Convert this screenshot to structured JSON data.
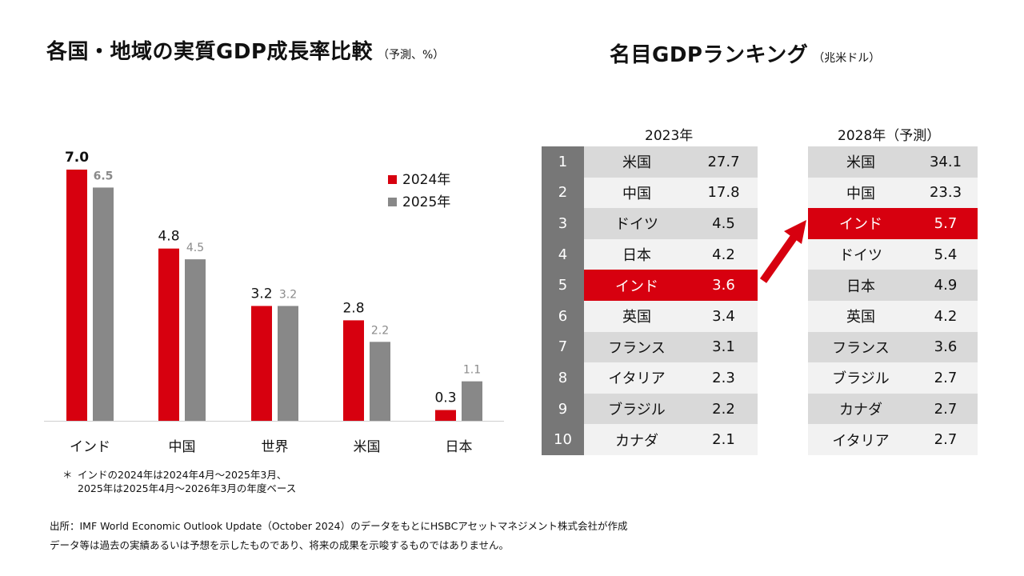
{
  "left_title": {
    "main": "各国・地域の実質GDP成長率比較",
    "sub": "（予測、%）"
  },
  "right_title": {
    "main": "名目GDPランキング",
    "sub": "（兆米ドル）"
  },
  "chart_data": {
    "type": "bar",
    "title": "各国・地域の実質GDP成長率比較",
    "categories": [
      "インド",
      "中国",
      "世界",
      "米国",
      "日本"
    ],
    "series": [
      {
        "name": "2024年",
        "color": "#d7000f",
        "values": [
          7.0,
          4.8,
          3.2,
          2.8,
          0.3
        ],
        "labels": [
          "7.0",
          "4.8",
          "3.2",
          "2.8",
          "0.3"
        ]
      },
      {
        "name": "2025年",
        "color": "#888888",
        "values": [
          6.5,
          4.5,
          3.2,
          2.2,
          1.1
        ],
        "labels": [
          "6.5",
          "4.5",
          "3.2",
          "2.2",
          "1.1"
        ]
      }
    ],
    "ylim": [
      0,
      7.5
    ],
    "legend": "top-right"
  },
  "ranking": {
    "year_2023": "2023年",
    "year_2028": "2028年（予測）",
    "highlight_color": "#d7000f",
    "rows_2023": [
      {
        "rank": "1",
        "country": "米国",
        "value": "27.7"
      },
      {
        "rank": "2",
        "country": "中国",
        "value": "17.8"
      },
      {
        "rank": "3",
        "country": "ドイツ",
        "value": "4.5"
      },
      {
        "rank": "4",
        "country": "日本",
        "value": "4.2"
      },
      {
        "rank": "5",
        "country": "インド",
        "value": "3.6",
        "highlight": true
      },
      {
        "rank": "6",
        "country": "英国",
        "value": "3.4"
      },
      {
        "rank": "7",
        "country": "フランス",
        "value": "3.1"
      },
      {
        "rank": "8",
        "country": "イタリア",
        "value": "2.3"
      },
      {
        "rank": "9",
        "country": "ブラジル",
        "value": "2.2"
      },
      {
        "rank": "10",
        "country": "カナダ",
        "value": "2.1"
      }
    ],
    "rows_2028": [
      {
        "country": "米国",
        "value": "34.1"
      },
      {
        "country": "中国",
        "value": "23.3"
      },
      {
        "country": "インド",
        "value": "5.7",
        "highlight": true
      },
      {
        "country": "ドイツ",
        "value": "5.4"
      },
      {
        "country": "日本",
        "value": "4.9"
      },
      {
        "country": "英国",
        "value": "4.2"
      },
      {
        "country": "フランス",
        "value": "3.6"
      },
      {
        "country": "ブラジル",
        "value": "2.7"
      },
      {
        "country": "カナダ",
        "value": "2.7"
      },
      {
        "country": "イタリア",
        "value": "2.7"
      }
    ]
  },
  "footnotes": {
    "asterisk": "＊",
    "note_line1": "インドの2024年は2024年4月～2025年3月、",
    "note_line2": "2025年は2025年4月～2026年3月の年度ベース",
    "source": "出所：IMF World Economic Outlook Update（October 2024）のデータをもとにHSBCアセットマネジメント株式会社が作成",
    "disclaimer": "データ等は過去の実績あるいは予想を示したものであり、将来の成果を示唆するものではありません。"
  }
}
